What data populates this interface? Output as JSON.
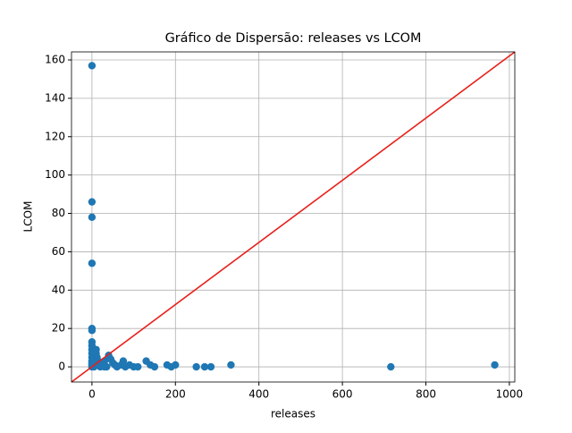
{
  "chart_data": {
    "type": "scatter",
    "title": "Gráfico de Dispersão: releases vs LCOM",
    "x_label": "releases",
    "y_label": "LCOM",
    "color": "#1f77b4",
    "grid": true,
    "x": [
      0,
      0,
      0,
      0,
      0,
      0,
      0,
      0,
      0,
      0,
      0,
      0,
      0,
      0,
      0,
      5,
      10,
      10,
      12,
      15,
      20,
      25,
      30,
      35,
      40,
      45,
      50,
      55,
      60,
      70,
      75,
      80,
      90,
      100,
      110,
      130,
      140,
      150,
      180,
      190,
      200,
      250,
      270,
      285,
      333,
      716,
      965,
      5,
      8,
      20,
      30
    ],
    "y": [
      157,
      86,
      78,
      54,
      20,
      19,
      13,
      11,
      9,
      7,
      5,
      3,
      2,
      1,
      0,
      4,
      9,
      7,
      5,
      3,
      2,
      1,
      3,
      0,
      6,
      4,
      2,
      1,
      0,
      1,
      3,
      0,
      1,
      0,
      0,
      3,
      1,
      0,
      1,
      0,
      1,
      0,
      0,
      0,
      1,
      0,
      1,
      0,
      2,
      0,
      0
    ],
    "xlim": [
      -49,
      1013
    ],
    "ylim": [
      -7.9,
      164.2
    ],
    "xticks": [
      0,
      200,
      400,
      600,
      800,
      1000
    ],
    "yticks": [
      0,
      20,
      40,
      60,
      80,
      100,
      120,
      140,
      160
    ]
  }
}
